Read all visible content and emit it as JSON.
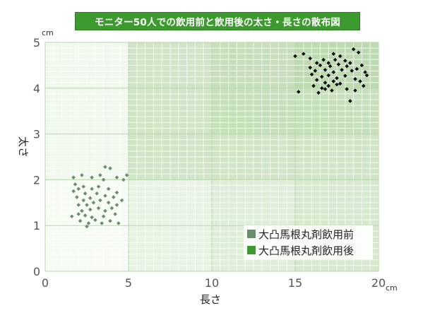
{
  "chart_data": {
    "type": "scatter",
    "title": "モニター50人での飲用前と飲用後の太さ・長さの散布図",
    "xlabel": "長さ",
    "ylabel": "太さ",
    "x_unit": "cm",
    "y_unit": "cm",
    "xlim": [
      0,
      20
    ],
    "ylim": [
      0,
      5
    ],
    "x_ticks": [
      "0",
      "5",
      "10",
      "15",
      "20"
    ],
    "y_ticks": [
      "0",
      "1",
      "2",
      "3",
      "4",
      "5"
    ],
    "grid": true,
    "legend_position": "bottom-right",
    "series": [
      {
        "name": "大凸馬根丸剤飲用前",
        "color": "#6b8e6b",
        "points": [
          [
            1.7,
            2.05
          ],
          [
            1.8,
            1.9
          ],
          [
            2.2,
            2.1
          ],
          [
            2.3,
            1.85
          ],
          [
            2.8,
            2.05
          ],
          [
            3.3,
            2.1
          ],
          [
            3.5,
            2.0
          ],
          [
            3.6,
            2.28
          ],
          [
            3.9,
            2.25
          ],
          [
            4.3,
            2.05
          ],
          [
            4.7,
            2.0
          ],
          [
            4.9,
            2.1
          ],
          [
            1.7,
            1.75
          ],
          [
            2.0,
            1.8
          ],
          [
            2.4,
            1.7
          ],
          [
            2.8,
            1.8
          ],
          [
            3.2,
            1.85
          ],
          [
            3.8,
            1.8
          ],
          [
            4.3,
            1.72
          ],
          [
            1.9,
            1.62
          ],
          [
            2.3,
            1.55
          ],
          [
            2.7,
            1.6
          ],
          [
            3.1,
            1.7
          ],
          [
            3.6,
            1.65
          ],
          [
            4.1,
            1.62
          ],
          [
            2.0,
            1.45
          ],
          [
            2.5,
            1.45
          ],
          [
            2.9,
            1.5
          ],
          [
            3.3,
            1.55
          ],
          [
            3.8,
            1.5
          ],
          [
            4.3,
            1.45
          ],
          [
            4.6,
            1.55
          ],
          [
            2.2,
            1.32
          ],
          [
            2.7,
            1.35
          ],
          [
            3.2,
            1.38
          ],
          [
            3.6,
            1.32
          ],
          [
            4.0,
            1.38
          ],
          [
            1.6,
            1.2
          ],
          [
            2.0,
            1.25
          ],
          [
            2.4,
            1.22
          ],
          [
            2.8,
            1.18
          ],
          [
            3.5,
            1.2
          ],
          [
            4.2,
            1.25
          ],
          [
            2.1,
            1.1
          ],
          [
            2.6,
            1.05
          ],
          [
            3.0,
            1.12
          ],
          [
            3.4,
            1.05
          ],
          [
            3.9,
            1.1
          ],
          [
            4.4,
            1.05
          ],
          [
            2.5,
            0.98
          ]
        ]
      },
      {
        "name": "大凸馬根丸剤飲用後",
        "color": "#111111",
        "points": [
          [
            15.0,
            4.7
          ],
          [
            15.5,
            4.75
          ],
          [
            15.9,
            4.65
          ],
          [
            16.7,
            4.62
          ],
          [
            17.3,
            4.75
          ],
          [
            17.7,
            4.7
          ],
          [
            18.0,
            4.6
          ],
          [
            18.5,
            4.85
          ],
          [
            18.8,
            4.78
          ],
          [
            16.3,
            4.55
          ],
          [
            17.0,
            4.55
          ],
          [
            17.4,
            4.62
          ],
          [
            18.3,
            4.55
          ],
          [
            15.9,
            4.45
          ],
          [
            16.5,
            4.5
          ],
          [
            17.1,
            4.48
          ],
          [
            17.6,
            4.52
          ],
          [
            18.1,
            4.48
          ],
          [
            18.7,
            4.42
          ],
          [
            19.0,
            4.5
          ],
          [
            16.2,
            4.38
          ],
          [
            16.8,
            4.4
          ],
          [
            17.3,
            4.35
          ],
          [
            17.8,
            4.4
          ],
          [
            18.4,
            4.38
          ],
          [
            19.2,
            4.35
          ],
          [
            16.0,
            4.3
          ],
          [
            16.6,
            4.25
          ],
          [
            17.0,
            4.28
          ],
          [
            17.5,
            4.22
          ],
          [
            18.0,
            4.27
          ],
          [
            18.6,
            4.2
          ],
          [
            19.3,
            4.28
          ],
          [
            16.3,
            4.18
          ],
          [
            16.8,
            4.12
          ],
          [
            17.3,
            4.15
          ],
          [
            17.7,
            4.1
          ],
          [
            18.9,
            4.15
          ],
          [
            19.1,
            4.05
          ],
          [
            16.1,
            4.05
          ],
          [
            16.6,
            4.0
          ],
          [
            17.0,
            4.05
          ],
          [
            17.5,
            4.08
          ],
          [
            18.1,
            3.98
          ],
          [
            18.6,
            3.95
          ],
          [
            16.4,
            3.9
          ],
          [
            17.2,
            3.95
          ],
          [
            15.2,
            3.92
          ],
          [
            18.3,
            3.72
          ],
          [
            16.8,
            3.98
          ]
        ]
      }
    ]
  }
}
